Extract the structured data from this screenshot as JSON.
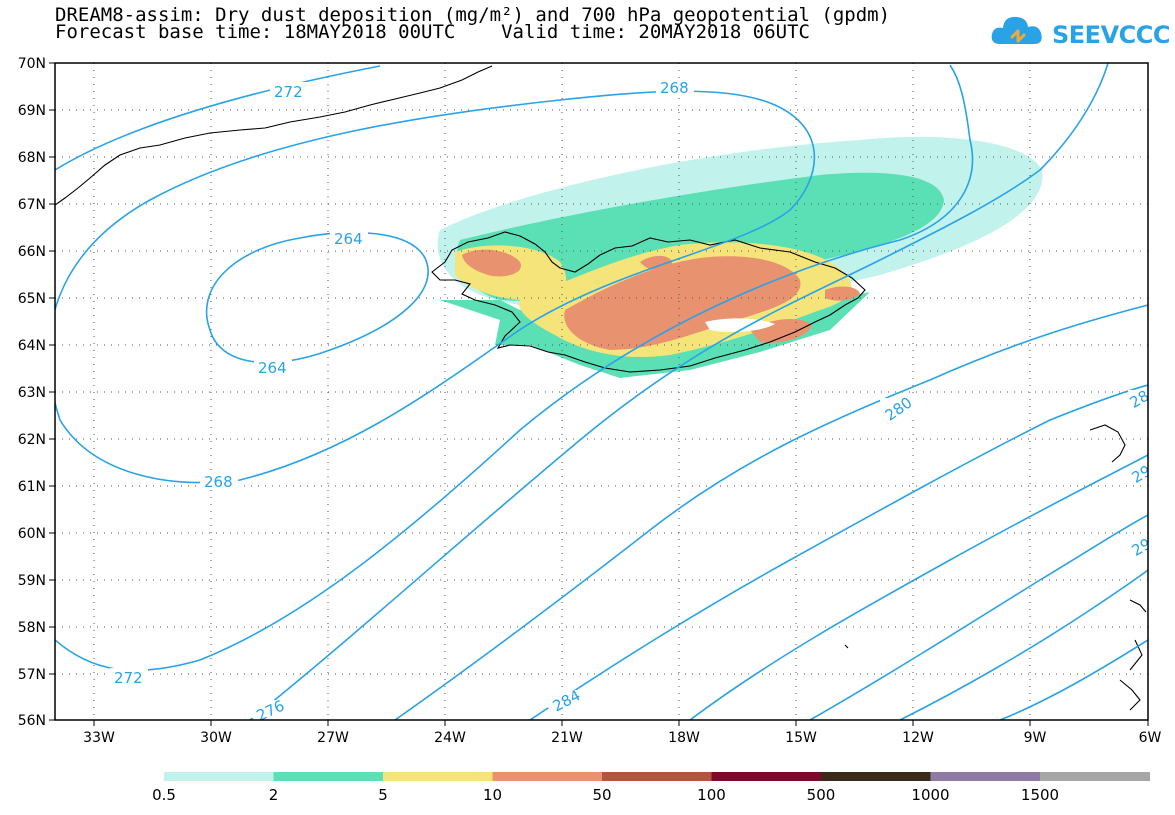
{
  "header": {
    "title_line1": "DREAM8-assim: Dry dust deposition (mg/m²) and 700 hPa geopotential (gpdm)",
    "title_line2": "Forecast base time: 18MAY2018 00UTC    Valid time: 20MAY2018 06UTC"
  },
  "logo": {
    "text": "SEEVCCC",
    "icon": "cloud-logo-icon",
    "color": "#2aa3e6"
  },
  "map": {
    "lat_labels": [
      "70N",
      "69N",
      "68N",
      "67N",
      "66N",
      "65N",
      "64N",
      "63N",
      "62N",
      "61N",
      "60N",
      "59N",
      "58N",
      "57N",
      "56N"
    ],
    "lon_labels": [
      "33W",
      "30W",
      "27W",
      "24W",
      "21W",
      "18W",
      "15W",
      "12W",
      "9W",
      "6W"
    ],
    "contour_color": "#2aa3e6",
    "contour_labels": {
      "c272_top": "272",
      "c268_top": "268",
      "c264_top": "264",
      "c264_bottom": "264",
      "c268_left": "268",
      "c272_bottom": "272",
      "c276": "276",
      "c280": "280",
      "c284": "284",
      "c288_right": "28",
      "c292_right": "29",
      "c296_right": "29"
    }
  },
  "legend": {
    "labels": [
      "0.5",
      "2",
      "5",
      "10",
      "50",
      "100",
      "500",
      "1000",
      "1500"
    ],
    "colors": [
      "#c2f2ec",
      "#5be0b5",
      "#f5e47a",
      "#e89270",
      "#b0563c",
      "#7d0a2a",
      "#3b2a1a",
      "#8e7aa3",
      "#a6a6a6"
    ]
  }
}
